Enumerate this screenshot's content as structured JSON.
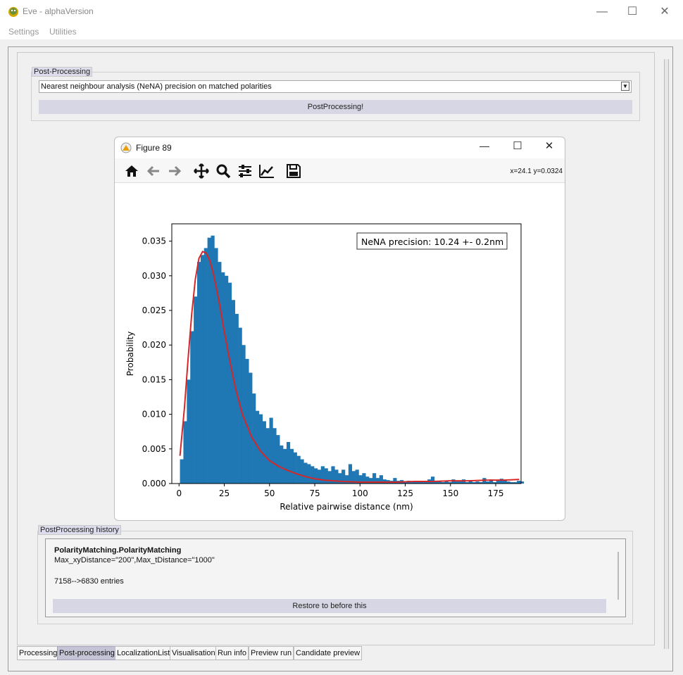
{
  "window": {
    "title": "Eve - alphaVersion",
    "minimize": "—",
    "maximize": "☐",
    "close": "✕"
  },
  "menu": {
    "items": [
      "Settings",
      "Utilities"
    ]
  },
  "postprocessing": {
    "group_label": "Post-Processing",
    "method_selected": "Nearest neighbour analysis (NeNA) precision on matched polarities",
    "run_button": "PostProcessing!"
  },
  "figure": {
    "title": "Figure 89",
    "coords": "x=24.1 y=0.0324",
    "toolbar_icons": [
      "home-icon",
      "back-arrow-icon",
      "forward-arrow-icon",
      "pan-icon",
      "zoom-icon",
      "configure-subplots-icon",
      "edit-axis-icon",
      "save-icon"
    ]
  },
  "chart_data": {
    "type": "bar",
    "title": "",
    "xlabel": "Relative pairwise distance (nm)",
    "ylabel": "Probability",
    "xlim": [
      -4,
      189
    ],
    "ylim": [
      0,
      0.0375
    ],
    "xticks": [
      0,
      25,
      50,
      75,
      100,
      125,
      150,
      175
    ],
    "yticks": [
      0.0,
      0.005,
      0.01,
      0.015,
      0.02,
      0.025,
      0.03,
      0.035
    ],
    "ytick_labels": [
      "0.000",
      "0.005",
      "0.010",
      "0.015",
      "0.020",
      "0.025",
      "0.030",
      "0.035"
    ],
    "annotation": "NeNA precision: 10.24 +- 0.2nm",
    "bin_width": 1.9,
    "bin_start": 0.5,
    "values": [
      0.0035,
      0.009,
      0.015,
      0.022,
      0.027,
      0.032,
      0.033,
      0.034,
      0.0355,
      0.0358,
      0.034,
      0.032,
      0.0305,
      0.03,
      0.029,
      0.0265,
      0.0245,
      0.0225,
      0.02,
      0.018,
      0.016,
      0.013,
      0.0105,
      0.01,
      0.009,
      0.008,
      0.0095,
      0.008,
      0.007,
      0.0055,
      0.005,
      0.006,
      0.005,
      0.0045,
      0.004,
      0.0035,
      0.003,
      0.0028,
      0.0025,
      0.0022,
      0.002,
      0.0025,
      0.0022,
      0.0018,
      0.0025,
      0.002,
      0.0015,
      0.002,
      0.0012,
      0.0028,
      0.0018,
      0.002,
      0.0012,
      0.0015,
      0.001,
      0.0008,
      0.0015,
      0.0008,
      0.0012,
      0.0006,
      0.0005,
      0.0004,
      0.0008,
      0.0004,
      0.0005,
      0.0003,
      0.0004,
      0.0002,
      0.0002,
      0.0004,
      0.0002,
      0.0003,
      0.0006,
      0.001,
      0.0004,
      0.0003,
      0.0002,
      0.0004,
      0.0002,
      0.0006,
      0.0003,
      0.0003,
      0.0006,
      0.0002,
      0.0005,
      0.0002,
      0.0003,
      0.0002,
      0.0008,
      0.0003,
      0.0006,
      0.0002,
      0.0004,
      0.0007,
      0.0005,
      0.0003,
      0.0002,
      0.0002,
      0.0004,
      0.0003
    ],
    "fit_curve": {
      "color": "#d62728",
      "x": [
        0.5,
        3,
        5,
        7,
        9,
        11,
        13,
        15,
        17,
        19,
        21,
        23,
        25,
        28,
        31,
        35,
        40,
        45,
        50,
        55,
        60,
        65,
        70,
        75,
        80,
        90,
        100,
        110,
        120,
        130,
        140,
        150,
        160,
        170,
        180,
        188
      ],
      "y": [
        0.004,
        0.011,
        0.018,
        0.0245,
        0.0295,
        0.0325,
        0.0335,
        0.0333,
        0.0322,
        0.0303,
        0.0278,
        0.025,
        0.022,
        0.0178,
        0.014,
        0.01,
        0.0068,
        0.0047,
        0.0033,
        0.0025,
        0.0019,
        0.0014,
        0.001,
        0.0007,
        0.0005,
        0.0003,
        0.0002,
        0.0002,
        0.0002,
        0.0003,
        0.0003,
        0.0004,
        0.0004,
        0.0005,
        0.0005,
        0.0006
      ]
    },
    "bar_color": "#1f77b4"
  },
  "history": {
    "group_label": "PostProcessing history",
    "entry_title": "PolarityMatching.PolarityMatching",
    "entry_params": "Max_xyDistance=\"200\",Max_tDistance=\"1000\"",
    "entry_result": "7158-->6830 entries",
    "restore_button": "Restore to before this"
  },
  "tabs": [
    {
      "label": "Processing",
      "active": false
    },
    {
      "label": "Post-processing",
      "active": true
    },
    {
      "label": "LocalizationList",
      "active": false
    },
    {
      "label": "Visualisation",
      "active": false
    },
    {
      "label": "Run info",
      "active": false
    },
    {
      "label": "Preview run",
      "active": false
    },
    {
      "label": "Candidate preview",
      "active": false
    }
  ]
}
